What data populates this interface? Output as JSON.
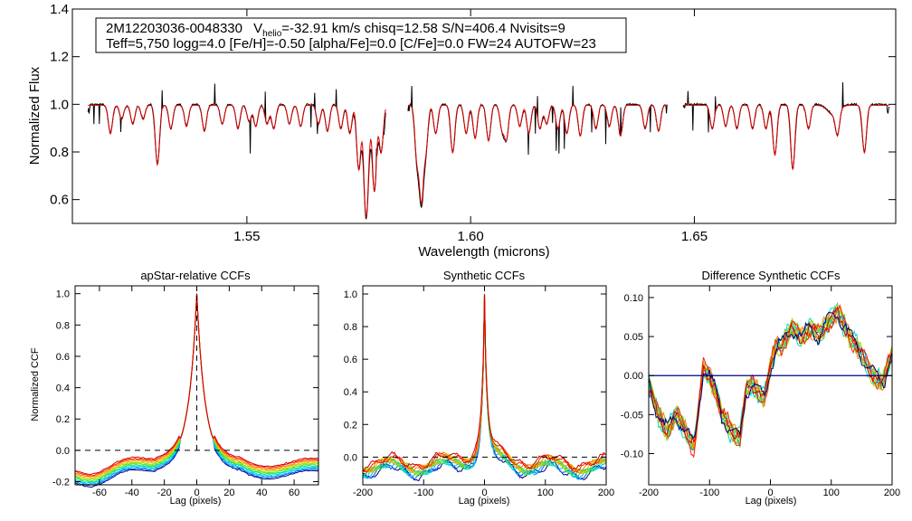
{
  "info": {
    "star_id": "2M12203036-0048330",
    "v": "V",
    "v_sub": "helio",
    "v_rest": "=-32.91 km/s  chisq=12.58  S/N=406.4  Nvisits=9",
    "line2": "Teff=5,750 logg=4.0 [Fe/H]=-0.50 [alpha/Fe]=0.0 [C/Fe]=0.0 FW=24 AUTOFW=23"
  },
  "colors": {
    "observed": "#000000",
    "model": "#dd0000",
    "zero_line": "#000080",
    "visits": [
      "#000080",
      "#0060ff",
      "#00b0ff",
      "#00d8c8",
      "#00e878",
      "#60e020",
      "#a8d800",
      "#e0c000",
      "#ff8000",
      "#ff2000",
      "#d00000"
    ]
  },
  "chart_data": [
    {
      "name": "spectrum",
      "type": "line",
      "title": "",
      "xlabel": "Wavelength (microns)",
      "ylabel": "Normalized Flux",
      "xlim": [
        1.511,
        1.695
      ],
      "ylim": [
        0.5,
        1.4
      ],
      "xticks": [
        1.55,
        1.6,
        1.65
      ],
      "xtick_labels": [
        "1.55",
        "1.60",
        "1.65"
      ],
      "yticks": [
        0.6,
        0.8,
        1.0,
        1.2,
        1.4
      ],
      "ytick_labels": [
        "0.6",
        "0.8",
        "1.0",
        "1.2",
        "1.4"
      ],
      "chip_ranges": [
        [
          1.5145,
          1.581
        ],
        [
          1.586,
          1.644
        ],
        [
          1.6475,
          1.6935
        ]
      ],
      "series": [
        {
          "name": "observed"
        },
        {
          "name": "model"
        }
      ],
      "absorption_lines": [
        [
          1.5195,
          0.12
        ],
        [
          1.522,
          0.06
        ],
        [
          1.5245,
          0.08
        ],
        [
          1.5268,
          0.06
        ],
        [
          1.53,
          0.25
        ],
        [
          1.533,
          0.1
        ],
        [
          1.5365,
          0.09
        ],
        [
          1.5405,
          0.11
        ],
        [
          1.5445,
          0.08
        ],
        [
          1.548,
          0.1
        ],
        [
          1.5505,
          0.07
        ],
        [
          1.552,
          0.09
        ],
        [
          1.5545,
          0.08
        ],
        [
          1.556,
          0.1
        ],
        [
          1.5595,
          0.08
        ],
        [
          1.562,
          0.09
        ],
        [
          1.566,
          0.08
        ],
        [
          1.568,
          0.11
        ],
        [
          1.571,
          0.1
        ],
        [
          1.573,
          0.12
        ],
        [
          1.575,
          0.27
        ],
        [
          1.5765,
          0.34
        ],
        [
          1.577,
          0.2
        ],
        [
          1.5785,
          0.36
        ],
        [
          1.58,
          0.2
        ],
        [
          1.588,
          0.22
        ],
        [
          1.589,
          0.38
        ],
        [
          1.59,
          0.18
        ],
        [
          1.5922,
          0.12
        ],
        [
          1.596,
          0.2
        ],
        [
          1.599,
          0.12
        ],
        [
          1.601,
          0.14
        ],
        [
          1.604,
          0.15
        ],
        [
          1.607,
          0.1
        ],
        [
          1.608,
          0.14
        ],
        [
          1.611,
          0.09
        ],
        [
          1.613,
          0.12
        ],
        [
          1.6155,
          0.1
        ],
        [
          1.617,
          0.08
        ],
        [
          1.6195,
          0.1
        ],
        [
          1.6215,
          0.12
        ],
        [
          1.6245,
          0.13
        ],
        [
          1.628,
          0.1
        ],
        [
          1.631,
          0.09
        ],
        [
          1.6335,
          0.13
        ],
        [
          1.639,
          0.1
        ],
        [
          1.642,
          0.11
        ],
        [
          1.654,
          0.1
        ],
        [
          1.657,
          0.09
        ],
        [
          1.6595,
          0.1
        ],
        [
          1.663,
          0.1
        ],
        [
          1.666,
          0.1
        ],
        [
          1.668,
          0.21
        ],
        [
          1.672,
          0.27
        ],
        [
          1.6755,
          0.1
        ],
        [
          1.682,
          0.1
        ],
        [
          1.688,
          0.2
        ]
      ]
    },
    {
      "name": "apstar-ccf",
      "type": "line",
      "title": "apStar-relative CCFs",
      "xlabel": "Lag (pixels)",
      "ylabel": "Normalized CCF",
      "xlim": [
        -75,
        75
      ],
      "ylim": [
        -0.22,
        1.05
      ],
      "xticks": [
        -60,
        -40,
        -20,
        0,
        20,
        40,
        60
      ],
      "xtick_labels": [
        "-60",
        "-40",
        "-20",
        "0",
        "20",
        "40",
        "60"
      ],
      "yticks": [
        -0.2,
        0.0,
        0.2,
        0.4,
        0.6,
        0.8,
        1.0
      ],
      "ytick_labels": [
        "-0.2",
        "0.0",
        "0.2",
        "0.4",
        "0.6",
        "0.8",
        "1.0"
      ],
      "peak_lag": 0,
      "peak_value": 1.0,
      "n_series": 11
    },
    {
      "name": "synthetic-ccf",
      "type": "line",
      "title": "Synthetic CCFs",
      "xlabel": "Lag (pixels)",
      "ylabel": "",
      "xlim": [
        -200,
        200
      ],
      "ylim": [
        -0.17,
        1.05
      ],
      "xticks": [
        -200,
        -100,
        0,
        100,
        200
      ],
      "xtick_labels": [
        "-200",
        "-100",
        "0",
        "100",
        "200"
      ],
      "yticks": [
        0.0,
        0.2,
        0.4,
        0.6,
        0.8,
        1.0
      ],
      "ytick_labels": [
        "0.0",
        "0.2",
        "0.4",
        "0.6",
        "0.8",
        "1.0"
      ],
      "peak_lag": 0,
      "peak_value": 1.0,
      "n_series": 11
    },
    {
      "name": "difference-ccf",
      "type": "line",
      "title": "Difference Synthetic CCFs",
      "xlabel": "Lag (pixels)",
      "ylabel": "",
      "xlim": [
        -200,
        200
      ],
      "ylim": [
        -0.14,
        0.115
      ],
      "xticks": [
        -200,
        -100,
        0,
        100,
        200
      ],
      "xtick_labels": [
        "-200",
        "-100",
        "0",
        "100",
        "200"
      ],
      "yticks": [
        -0.1,
        -0.05,
        0.0,
        0.05,
        0.1
      ],
      "ytick_labels": [
        "-0.10",
        "-0.05",
        "0.00",
        "0.05",
        "0.10"
      ],
      "base_curve": [
        [
          -200,
          -0.01
        ],
        [
          -185,
          -0.05
        ],
        [
          -170,
          -0.07
        ],
        [
          -155,
          -0.05
        ],
        [
          -140,
          -0.07
        ],
        [
          -125,
          -0.09
        ],
        [
          -110,
          0.01
        ],
        [
          -100,
          0.0
        ],
        [
          -90,
          -0.02
        ],
        [
          -80,
          -0.05
        ],
        [
          -65,
          -0.07
        ],
        [
          -50,
          -0.08
        ],
        [
          -40,
          -0.02
        ],
        [
          -30,
          -0.01
        ],
        [
          -20,
          -0.02
        ],
        [
          -10,
          -0.03
        ],
        [
          0,
          0.01
        ],
        [
          10,
          0.04
        ],
        [
          20,
          0.04
        ],
        [
          35,
          0.06
        ],
        [
          50,
          0.05
        ],
        [
          65,
          0.06
        ],
        [
          80,
          0.05
        ],
        [
          95,
          0.07
        ],
        [
          110,
          0.08
        ],
        [
          125,
          0.06
        ],
        [
          140,
          0.04
        ],
        [
          155,
          0.02
        ],
        [
          170,
          0.0
        ],
        [
          185,
          -0.01
        ],
        [
          200,
          0.03
        ]
      ],
      "n_series": 11
    }
  ]
}
